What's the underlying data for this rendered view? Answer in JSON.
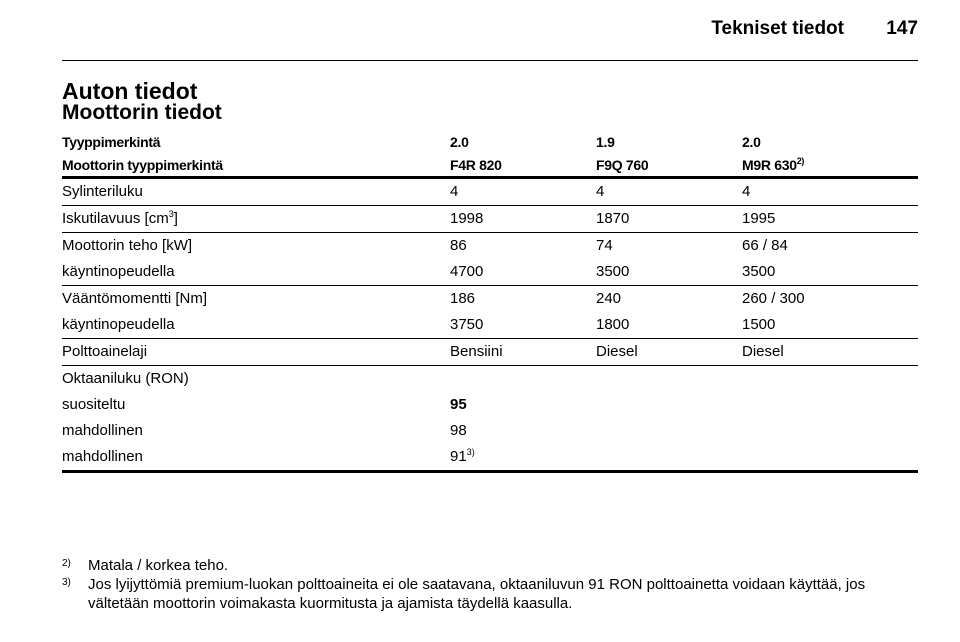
{
  "header": {
    "section": "Tekniset tiedot",
    "page": "147"
  },
  "title": "Auton tiedot",
  "subtitle": "Moottorin tiedot",
  "table": {
    "header": [
      [
        "Tyyppimerkintä",
        "2.0",
        "1.9",
        "2.0"
      ],
      [
        "Moottorin tyyppimerkintä",
        "F4R 820",
        "F9Q 760",
        {
          "text": "M9R 630",
          "sup": "2)"
        }
      ]
    ],
    "groups": [
      [
        [
          "Sylinteriluku",
          "4",
          "4",
          "4"
        ]
      ],
      [
        [
          {
            "text": "Iskutilavuus [cm",
            "sup": "3",
            "after": "]"
          },
          "1998",
          "1870",
          "1995"
        ]
      ],
      [
        [
          "Moottorin teho [kW]",
          "86",
          "74",
          "66 / 84"
        ],
        [
          "käyntinopeudella",
          "4700",
          "3500",
          "3500"
        ]
      ],
      [
        [
          "Vääntömomentti [Nm]",
          "186",
          "240",
          "260 / 300"
        ],
        [
          "käyntinopeudella",
          "3750",
          "1800",
          "1500"
        ]
      ],
      [
        [
          "Polttoainelaji",
          "Bensiini",
          "Diesel",
          "Diesel"
        ]
      ],
      [
        [
          "Oktaaniluku (RON)"
        ],
        [
          "suositeltu",
          {
            "text": "95",
            "bold": true
          }
        ],
        [
          "mahdollinen",
          "98"
        ],
        [
          "mahdollinen",
          {
            "text": "91",
            "sup": "3)"
          }
        ]
      ]
    ]
  },
  "footnotes": [
    {
      "marker": "2)",
      "text": "Matala / korkea teho."
    },
    {
      "marker": "3)",
      "text": "Jos lyijyttömiä premium-luokan polttoaineita ei ole saatavana, oktaaniluvun 91 RON polttoainetta voidaan käyttää, jos vältetään moottorin voimakasta kuormitusta ja ajamista täydellä kaasulla."
    }
  ]
}
